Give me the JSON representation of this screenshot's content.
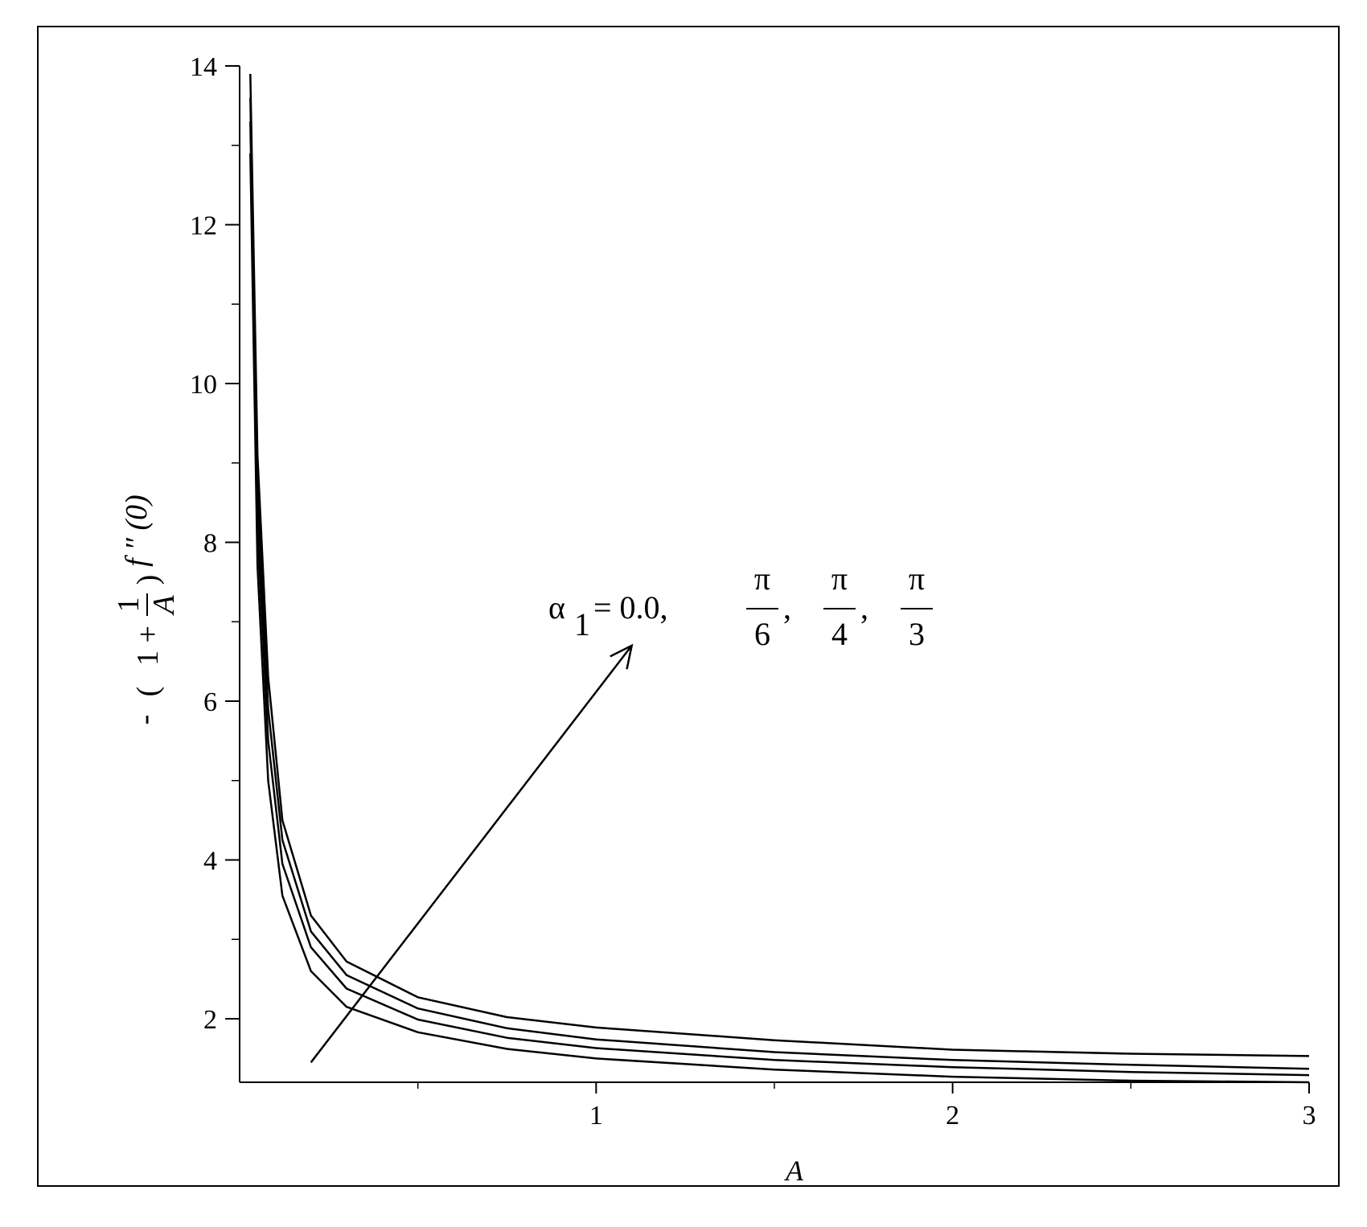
{
  "chart_data": {
    "type": "line",
    "xlabel": "A",
    "ylabel": {
      "prefix": "-",
      "numerator": "1",
      "plus": "1 +",
      "denominator": "A",
      "func": "f ″ (0)"
    },
    "xlim": [
      0,
      3
    ],
    "ylim": [
      1.2,
      14
    ],
    "x_ticks": [
      1,
      2,
      3
    ],
    "x_tick_labels": [
      "1",
      "2",
      "3"
    ],
    "y_ticks": [
      2,
      4,
      6,
      8,
      10,
      12,
      14
    ],
    "y_tick_labels": [
      "2",
      "4",
      "6",
      "8",
      "10",
      "12",
      "14"
    ],
    "annotation": {
      "alpha": "α",
      "sub": "1",
      "eq": "= 0.0,",
      "pi": "π",
      "d1": "6",
      "d2": "4",
      "d3": "3",
      "comma": ","
    },
    "arrow": {
      "from": [
        0.2,
        1.45
      ],
      "to": [
        1.1,
        6.7
      ]
    },
    "series": [
      {
        "label_ref": "0.0",
        "x": [
          0.03,
          0.05,
          0.08,
          0.12,
          0.2,
          0.3,
          0.5,
          0.75,
          1.0,
          1.5,
          2.0,
          2.5,
          3.0
        ],
        "y": [
          12.9,
          7.7,
          5.0,
          3.55,
          2.6,
          2.15,
          1.83,
          1.62,
          1.5,
          1.36,
          1.27,
          1.22,
          1.2
        ]
      },
      {
        "label_ref": "π/6",
        "x": [
          0.03,
          0.05,
          0.08,
          0.12,
          0.2,
          0.3,
          0.5,
          0.75,
          1.0,
          1.5,
          2.0,
          2.5,
          3.0
        ],
        "y": [
          13.3,
          8.2,
          5.5,
          3.95,
          2.9,
          2.38,
          1.99,
          1.76,
          1.63,
          1.48,
          1.39,
          1.33,
          1.29
        ]
      },
      {
        "label_ref": "π/4",
        "x": [
          0.03,
          0.05,
          0.08,
          0.12,
          0.2,
          0.3,
          0.5,
          0.75,
          1.0,
          1.5,
          2.0,
          2.5,
          3.0
        ],
        "y": [
          13.6,
          8.7,
          5.9,
          4.25,
          3.1,
          2.55,
          2.13,
          1.88,
          1.74,
          1.58,
          1.48,
          1.42,
          1.37
        ]
      },
      {
        "label_ref": "π/3",
        "x": [
          0.03,
          0.05,
          0.08,
          0.12,
          0.2,
          0.3,
          0.5,
          0.75,
          1.0,
          1.5,
          2.0,
          2.5,
          3.0
        ],
        "y": [
          13.9,
          9.1,
          6.3,
          4.5,
          3.3,
          2.72,
          2.27,
          2.02,
          1.89,
          1.73,
          1.61,
          1.56,
          1.53
        ]
      }
    ]
  }
}
